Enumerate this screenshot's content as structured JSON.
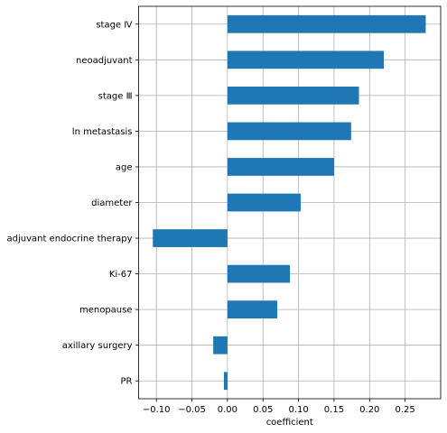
{
  "chart_data": {
    "type": "bar",
    "orientation": "horizontal",
    "title": "",
    "xlabel": "coefficient",
    "ylabel": "",
    "categories": [
      "stage Ⅳ",
      "neoadjuvant",
      "stage Ⅲ",
      "ln metastasis",
      "age",
      "diameter",
      "adjuvant endocrine therapy",
      "Ki-67",
      "menopause",
      "axillary surgery",
      "PR"
    ],
    "values": [
      0.279,
      0.22,
      0.185,
      0.174,
      0.15,
      0.103,
      -0.105,
      0.088,
      0.07,
      -0.02,
      -0.005
    ],
    "xlim": [
      -0.125,
      0.3
    ],
    "xticks": [
      -0.1,
      -0.05,
      0.0,
      0.05,
      0.1,
      0.15,
      0.2,
      0.25
    ],
    "xtick_labels": [
      "−0.10",
      "−0.05",
      "0.00",
      "0.05",
      "0.10",
      "0.15",
      "0.20",
      "0.25"
    ],
    "grid": true,
    "bar_color": "#1f77b4",
    "grid_color": "#b0b0b0",
    "legend": "none"
  }
}
